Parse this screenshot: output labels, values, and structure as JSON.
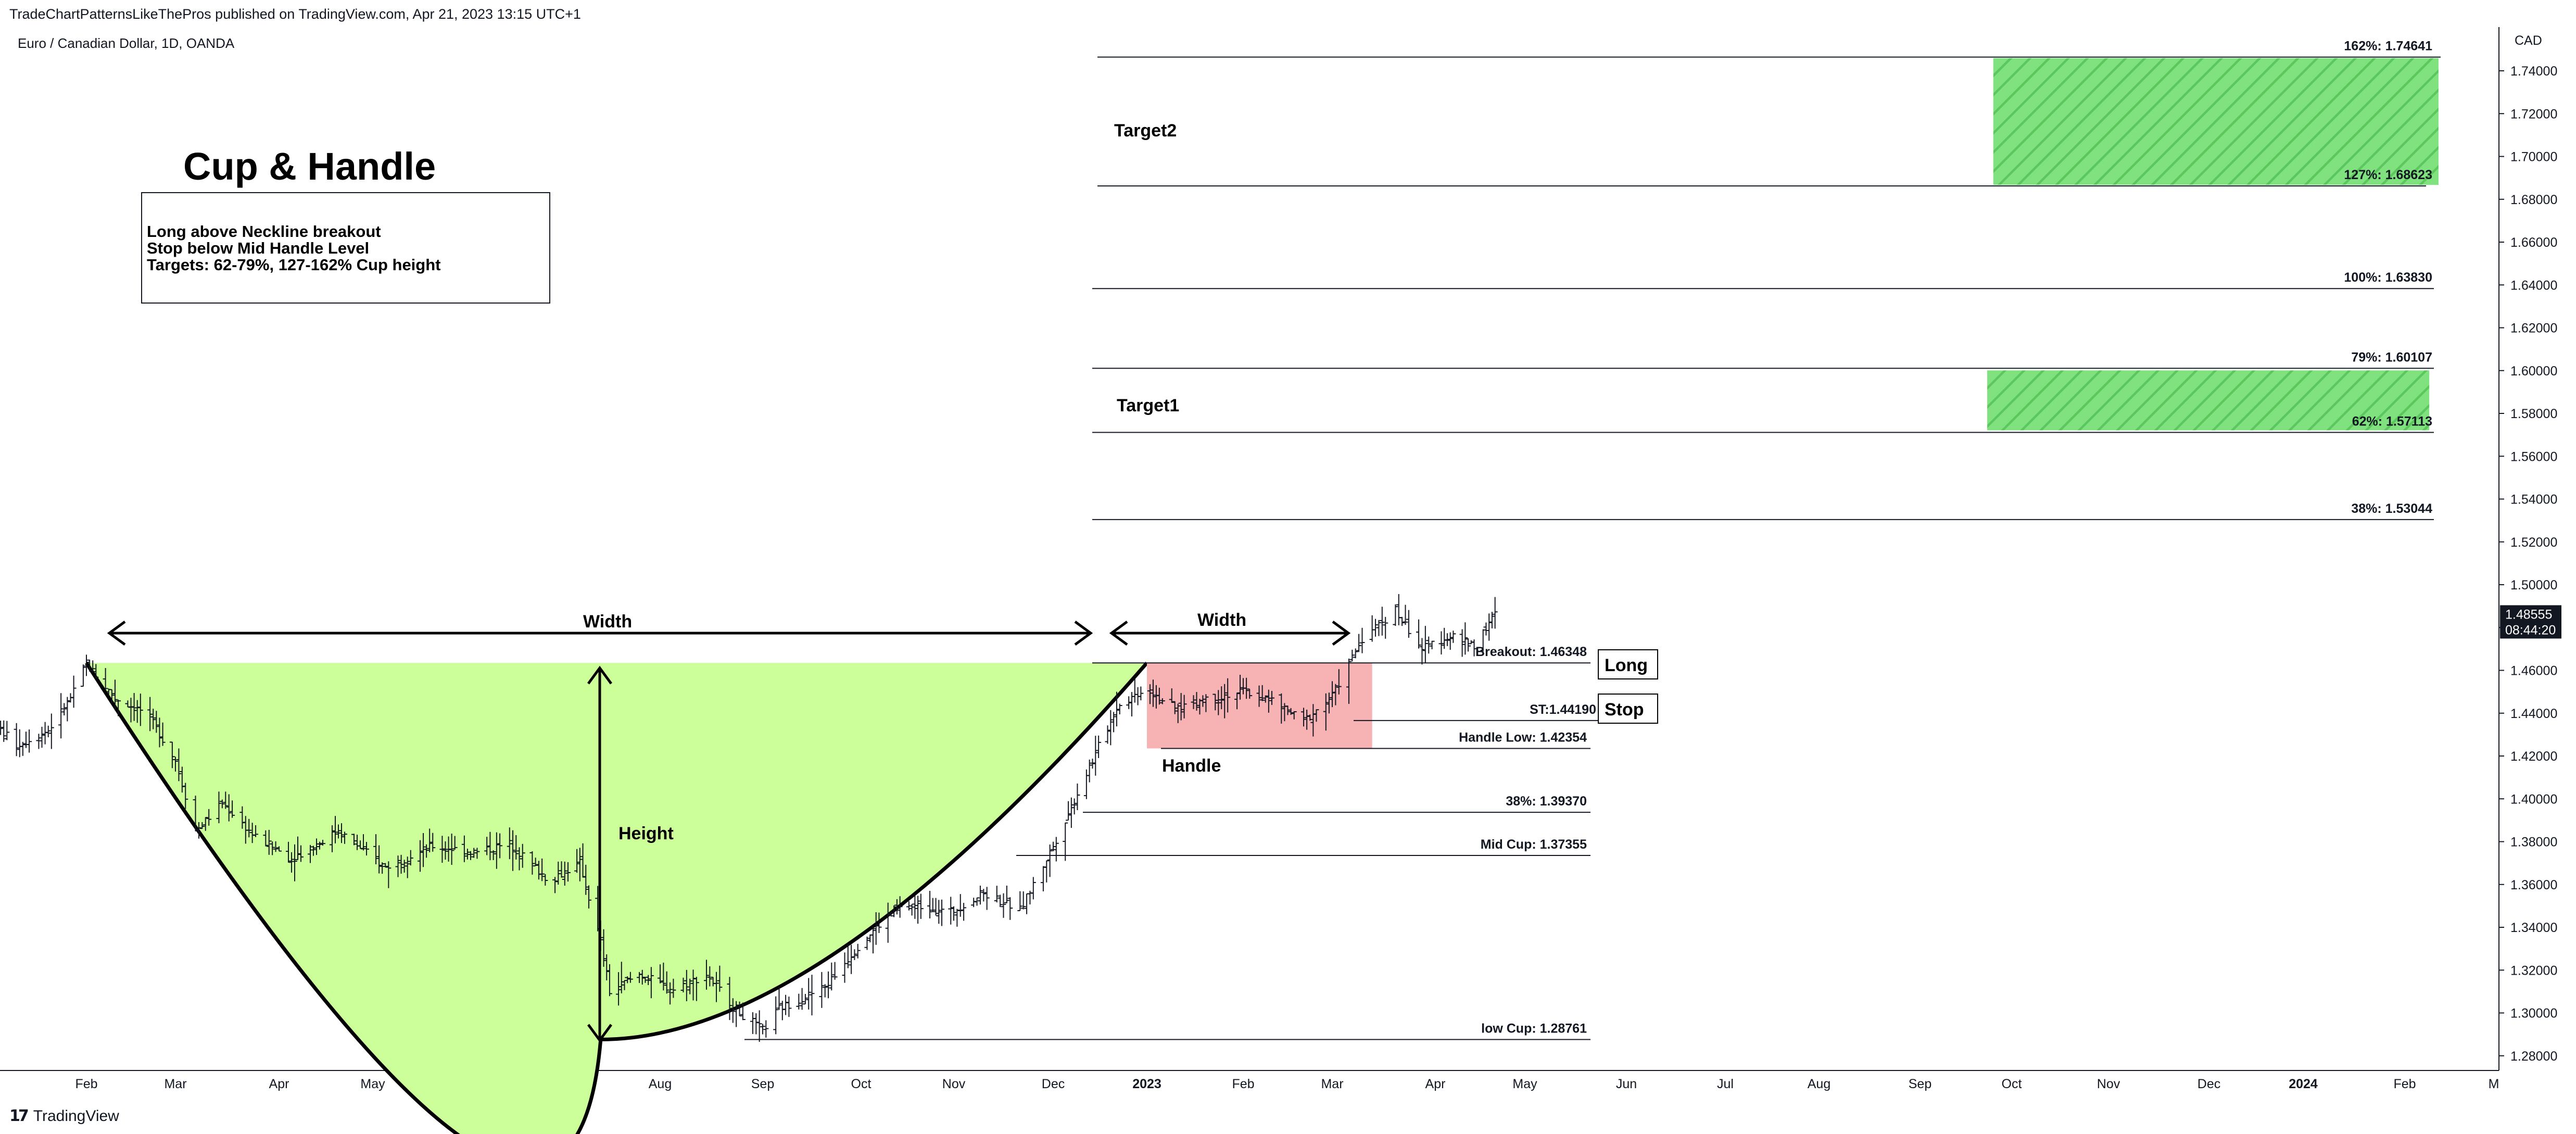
{
  "header": {
    "published": "TradeChartPatternsLikeThePros published on TradingView.com, Apr 21, 2023 13:15 UTC+1",
    "symbol": "Euro / Canadian Dollar, 1D, OANDA"
  },
  "footer": {
    "brand": "TradingView"
  },
  "annotations": {
    "title": "Cup & Handle",
    "notes": [
      "Long above Neckline breakout",
      "Stop below Mid Handle Level",
      "Targets: 62-79%, 127-162% Cup height"
    ],
    "cup_width": "Width",
    "handle_width": "Width",
    "height": "Height",
    "handle": "Handle",
    "target1": "Target1",
    "target2": "Target2",
    "long": "Long",
    "stop": "Stop"
  },
  "colors": {
    "cup_fill": "#ccff99",
    "handle_fill": "#f7b3b3",
    "target_fill": "#7fe27f",
    "target_hatch": "#5cc75c",
    "bars": "#131722",
    "price_badge": "#131722",
    "grid": "none"
  },
  "chart_data": {
    "type": "ohlc",
    "title": "Euro / Canadian Dollar, 1D, OANDA",
    "currency": "CAD",
    "ylim": [
      1.27,
      1.76
    ],
    "y_ticks": [
      "1.74000",
      "1.72000",
      "1.70000",
      "1.68000",
      "1.66000",
      "1.64000",
      "1.62000",
      "1.60000",
      "1.58000",
      "1.56000",
      "1.54000",
      "1.52000",
      "1.50000",
      "1.48000",
      "1.46000",
      "1.44000",
      "1.42000",
      "1.40000",
      "1.38000",
      "1.36000",
      "1.34000",
      "1.32000",
      "1.30000",
      "1.28000"
    ],
    "x_ticks": [
      "Feb",
      "Mar",
      "Apr",
      "May",
      "Jun",
      "Jul",
      "Aug",
      "Sep",
      "Oct",
      "Nov",
      "Dec",
      "2023",
      "Feb",
      "Mar",
      "Apr",
      "May",
      "Jun",
      "Jul",
      "Aug",
      "Sep",
      "Oct",
      "Nov",
      "Dec",
      "2024",
      "Feb",
      "M"
    ],
    "x_tick_dates": [
      "2022-02-01",
      "2022-03-01",
      "2022-04-01",
      "2022-05-01",
      "2022-06-01",
      "2022-07-01",
      "2022-08-01",
      "2022-09-01",
      "2022-10-01",
      "2022-11-01",
      "2022-12-01",
      "2023-01-01",
      "2023-02-01",
      "2023-03-01",
      "2023-04-01",
      "2023-05-01",
      "2023-06-01",
      "2023-07-01",
      "2023-08-01",
      "2023-09-01",
      "2023-10-01",
      "2023-11-01",
      "2023-12-01",
      "2024-01-01",
      "2024-02-01",
      "2024-03-01"
    ],
    "last_price": "1.48555",
    "countdown": "08:44:20",
    "price_path": [
      [
        "2022-01-01",
        1.438
      ],
      [
        "2022-01-10",
        1.425
      ],
      [
        "2022-01-20",
        1.432
      ],
      [
        "2022-01-27",
        1.447
      ],
      [
        "2022-02-01",
        1.463
      ],
      [
        "2022-02-10",
        1.447
      ],
      [
        "2022-02-20",
        1.44
      ],
      [
        "2022-03-01",
        1.418
      ],
      [
        "2022-03-07",
        1.385
      ],
      [
        "2022-03-15",
        1.398
      ],
      [
        "2022-03-25",
        1.382
      ],
      [
        "2022-04-05",
        1.372
      ],
      [
        "2022-04-20",
        1.385
      ],
      [
        "2022-05-05",
        1.368
      ],
      [
        "2022-05-20",
        1.378
      ],
      [
        "2022-06-03",
        1.375
      ],
      [
        "2022-06-13",
        1.379
      ],
      [
        "2022-06-25",
        1.362
      ],
      [
        "2022-07-05",
        1.37
      ],
      [
        "2022-07-12",
        1.333
      ],
      [
        "2022-07-15",
        1.31
      ],
      [
        "2022-07-25",
        1.318
      ],
      [
        "2022-08-05",
        1.311
      ],
      [
        "2022-08-15",
        1.318
      ],
      [
        "2022-08-25",
        1.3
      ],
      [
        "2022-09-01",
        1.292
      ],
      [
        "2022-09-06",
        1.302
      ],
      [
        "2022-09-20",
        1.312
      ],
      [
        "2022-10-01",
        1.333
      ],
      [
        "2022-10-12",
        1.348
      ],
      [
        "2022-10-20",
        1.35
      ],
      [
        "2022-10-31",
        1.347
      ],
      [
        "2022-11-10",
        1.356
      ],
      [
        "2022-11-21",
        1.348
      ],
      [
        "2022-12-01",
        1.378
      ],
      [
        "2022-12-12",
        1.412
      ],
      [
        "2022-12-22",
        1.443
      ],
      [
        "2023-01-01",
        1.452
      ],
      [
        "2023-01-10",
        1.442
      ],
      [
        "2023-01-20",
        1.447
      ],
      [
        "2023-02-01",
        1.45
      ],
      [
        "2023-02-10",
        1.446
      ],
      [
        "2023-02-20",
        1.436
      ],
      [
        "2023-03-01",
        1.448
      ],
      [
        "2023-03-10",
        1.475
      ],
      [
        "2023-03-20",
        1.488
      ],
      [
        "2023-03-28",
        1.47
      ],
      [
        "2023-04-05",
        1.476
      ],
      [
        "2023-04-14",
        1.472
      ],
      [
        "2023-04-21",
        1.486
      ]
    ],
    "levels": {
      "fib_162": {
        "label": "162%: 1.74641",
        "value": 1.74641
      },
      "fib_127": {
        "label": "127%: 1.68623",
        "value": 1.68623
      },
      "fib_100": {
        "label": "100%: 1.63830",
        "value": 1.6383
      },
      "fib_79": {
        "label": "79%: 1.60107",
        "value": 1.60107
      },
      "fib_62": {
        "label": "62%: 1.57113",
        "value": 1.57113
      },
      "fib_38_up": {
        "label": "38%: 1.53044",
        "value": 1.53044
      },
      "breakout": {
        "label": "Breakout: 1.46348",
        "value": 1.46348
      },
      "stop": {
        "label": "ST:1.44190",
        "value": 1.4419
      },
      "handle_low": {
        "label": "Handle Low: 1.42354",
        "value": 1.42354
      },
      "fib_38_low": {
        "label": "38%: 1.39370",
        "value": 1.3937
      },
      "mid_cup": {
        "label": "Mid Cup: 1.37355",
        "value": 1.37355
      },
      "low_cup": {
        "label": "low Cup: 1.28761",
        "value": 1.28761
      }
    }
  }
}
